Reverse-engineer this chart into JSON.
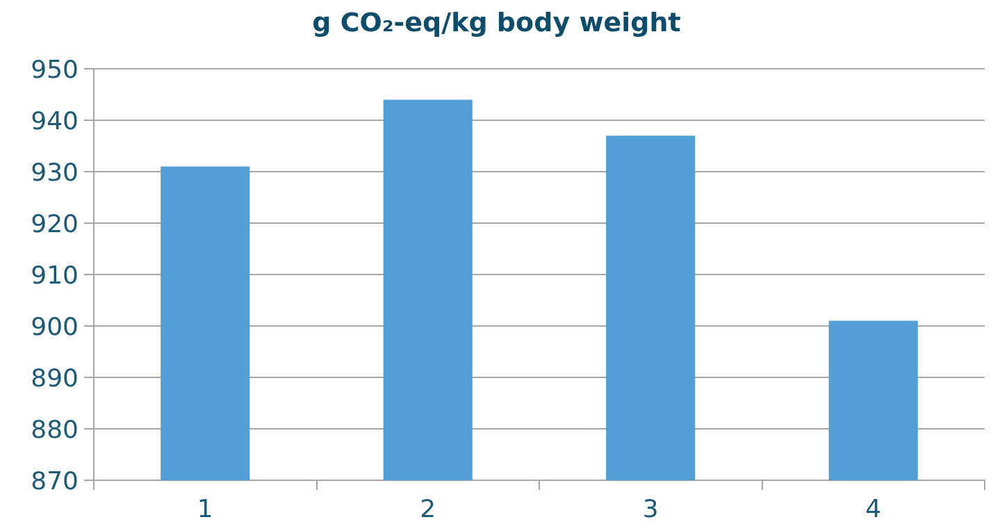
{
  "chart_data": {
    "type": "bar",
    "title": "g CO₂-eq/kg body weight",
    "categories": [
      "1",
      "2",
      "3",
      "4"
    ],
    "values": [
      931,
      944,
      937,
      901
    ],
    "color": "#529fd6",
    "ylim": [
      870,
      950
    ],
    "yticks": [
      870,
      880,
      890,
      900,
      910,
      920,
      930,
      940,
      950
    ],
    "grid": "y"
  }
}
